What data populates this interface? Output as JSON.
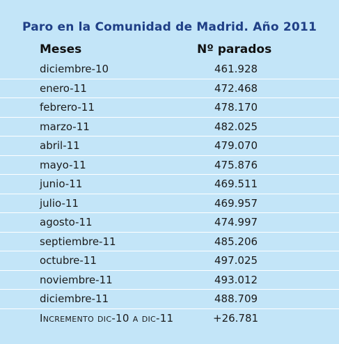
{
  "title": "Paro en la Comunidad de Madrid. Año 2011",
  "columns": {
    "month": "Meses",
    "count": "Nº parados"
  },
  "rows": [
    {
      "month": "diciembre-10",
      "count": "461.928"
    },
    {
      "month": "enero-11",
      "count": "472.468"
    },
    {
      "month": "febrero-11",
      "count": "478.170"
    },
    {
      "month": "marzo-11",
      "count": "482.025"
    },
    {
      "month": "abril-11",
      "count": "479.070"
    },
    {
      "month": "mayo-11",
      "count": "475.876"
    },
    {
      "month": "junio-11",
      "count": "469.511"
    },
    {
      "month": "julio-11",
      "count": "469.957"
    },
    {
      "month": "agosto-11",
      "count": "474.997"
    },
    {
      "month": "septiembre-11",
      "count": "485.206"
    },
    {
      "month": "octubre-11",
      "count": "497.025"
    },
    {
      "month": "noviembre-11",
      "count": "493.012"
    },
    {
      "month": "diciembre-11",
      "count": "488.709"
    }
  ],
  "total": {
    "label": "Incremento dic-10 a dic-11",
    "value": "+26.781"
  }
}
